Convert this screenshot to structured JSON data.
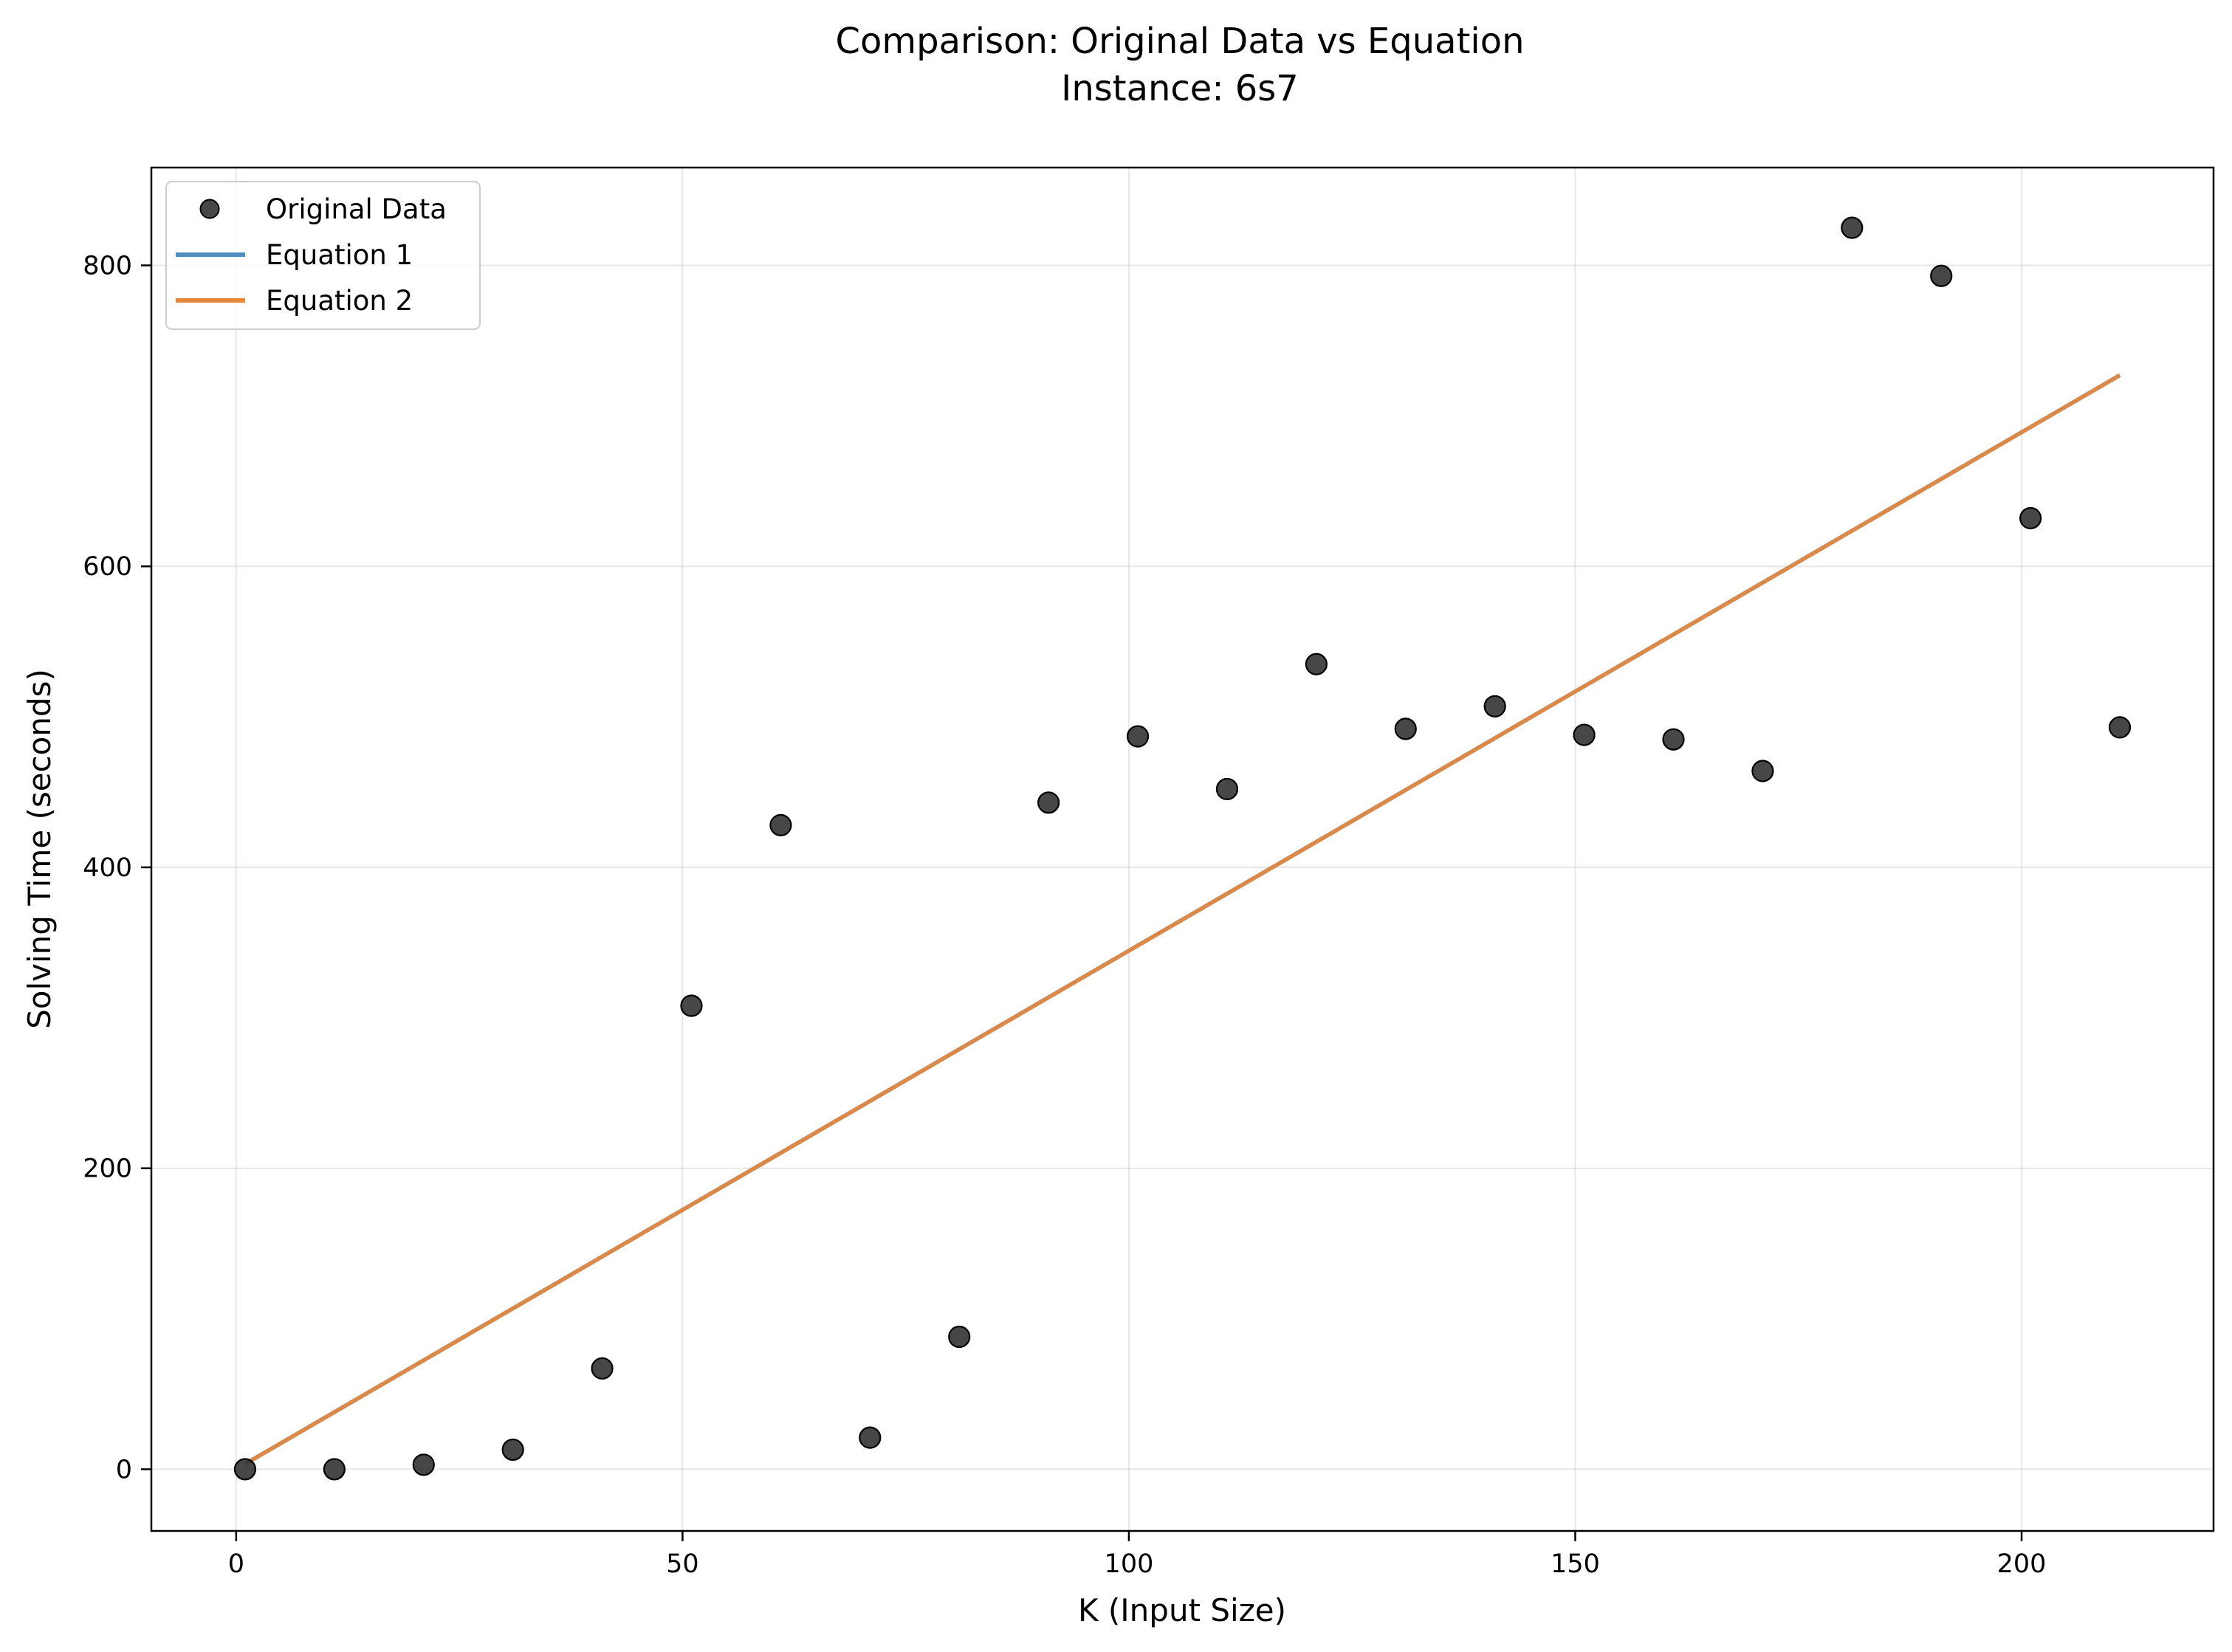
{
  "chart_data": {
    "type": "scatter",
    "title": "Comparison: Original Data vs Equation",
    "subtitle": "Instance: 6s7",
    "xlabel": "K (Input Size)",
    "ylabel": "Solving Time (seconds)",
    "xlim": [
      -9.5,
      221.5
    ],
    "ylim": [
      -41,
      865
    ],
    "xticks": [
      0,
      50,
      100,
      150,
      200
    ],
    "yticks": [
      0,
      200,
      400,
      600,
      800
    ],
    "grid": true,
    "legend_position": "upper-left",
    "series": [
      {
        "name": "Original Data",
        "kind": "scatter",
        "color": "#333333",
        "x": [
          1,
          11,
          21,
          31,
          41,
          51,
          61,
          71,
          81,
          91,
          101,
          111,
          121,
          131,
          141,
          151,
          161,
          171,
          181,
          191,
          201,
          211
        ],
        "y": [
          0,
          0,
          3,
          13,
          67,
          308,
          428,
          21,
          88,
          443,
          487,
          452,
          535,
          492,
          507,
          488,
          485,
          464,
          825,
          793,
          632,
          493
        ]
      },
      {
        "name": "Equation 1",
        "kind": "line",
        "color": "#4f8fbf",
        "x": [
          1,
          211
        ],
        "y": [
          3.5,
          727
        ]
      },
      {
        "name": "Equation 2",
        "kind": "line",
        "color": "#e8873a",
        "x": [
          1,
          211
        ],
        "y": [
          3.5,
          727
        ]
      }
    ]
  }
}
